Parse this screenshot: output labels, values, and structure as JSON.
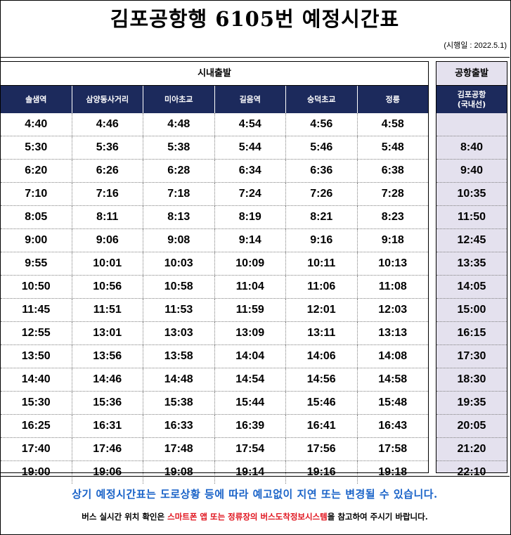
{
  "title": "김포공항행 6105번 예정시간표",
  "effective_date": "(시행일 : 2022.5.1)",
  "city_departure": {
    "label": "시내출발",
    "columns": [
      "솔샘역",
      "삼양동사거리",
      "미아초교",
      "길음역",
      "숭덕초교",
      "정릉"
    ],
    "rows": [
      [
        "4:40",
        "4:46",
        "4:48",
        "4:54",
        "4:56",
        "4:58"
      ],
      [
        "5:30",
        "5:36",
        "5:38",
        "5:44",
        "5:46",
        "5:48"
      ],
      [
        "6:20",
        "6:26",
        "6:28",
        "6:34",
        "6:36",
        "6:38"
      ],
      [
        "7:10",
        "7:16",
        "7:18",
        "7:24",
        "7:26",
        "7:28"
      ],
      [
        "8:05",
        "8:11",
        "8:13",
        "8:19",
        "8:21",
        "8:23"
      ],
      [
        "9:00",
        "9:06",
        "9:08",
        "9:14",
        "9:16",
        "9:18"
      ],
      [
        "9:55",
        "10:01",
        "10:03",
        "10:09",
        "10:11",
        "10:13"
      ],
      [
        "10:50",
        "10:56",
        "10:58",
        "11:04",
        "11:06",
        "11:08"
      ],
      [
        "11:45",
        "11:51",
        "11:53",
        "11:59",
        "12:01",
        "12:03"
      ],
      [
        "12:55",
        "13:01",
        "13:03",
        "13:09",
        "13:11",
        "13:13"
      ],
      [
        "13:50",
        "13:56",
        "13:58",
        "14:04",
        "14:06",
        "14:08"
      ],
      [
        "14:40",
        "14:46",
        "14:48",
        "14:54",
        "14:56",
        "14:58"
      ],
      [
        "15:30",
        "15:36",
        "15:38",
        "15:44",
        "15:46",
        "15:48"
      ],
      [
        "16:25",
        "16:31",
        "16:33",
        "16:39",
        "16:41",
        "16:43"
      ],
      [
        "17:40",
        "17:46",
        "17:48",
        "17:54",
        "17:56",
        "17:58"
      ],
      [
        "19:00",
        "19:06",
        "19:08",
        "19:14",
        "19:16",
        "19:18"
      ]
    ]
  },
  "airport_departure": {
    "label": "공항출발",
    "column_line1": "김포공항",
    "column_line2": "(국내선)",
    "rows": [
      "",
      "8:40",
      "9:40",
      "10:35",
      "11:50",
      "12:45",
      "13:35",
      "14:05",
      "15:00",
      "16:15",
      "17:30",
      "18:30",
      "19:35",
      "20:05",
      "21:20",
      "22:10"
    ]
  },
  "notice": {
    "line1": "상기 예정시간표는 도로상황 등에 따라 예고없이 지연 또는 변경될 수 있습니다.",
    "line2_before": "버스 실시간 위치 확인은 ",
    "line2_highlight": "스마트폰 앱 또는 정류장의 버스도착정보시스템",
    "line2_after": "을 참고하여 주시기 바랍니다."
  },
  "colors": {
    "header_navy": "#1c2a5c",
    "airport_bg": "#e4e1ee",
    "notice_blue": "#1a63c8",
    "notice_red": "#e0141e"
  }
}
